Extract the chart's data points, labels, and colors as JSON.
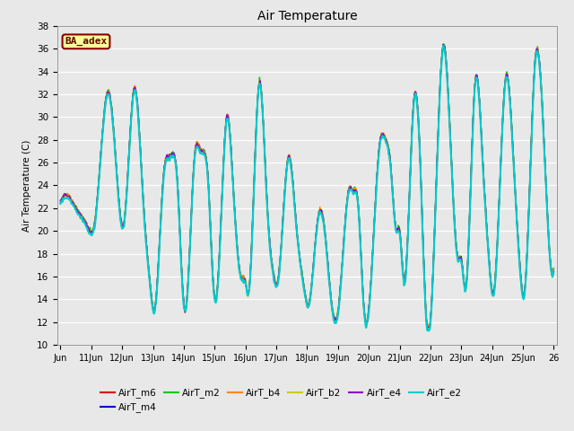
{
  "title": "Air Temperature",
  "ylabel": "Air Temperature (C)",
  "bg_color": "#e8e8e8",
  "ylim": [
    10,
    38
  ],
  "yticks": [
    10,
    12,
    14,
    16,
    18,
    20,
    22,
    24,
    26,
    28,
    30,
    32,
    34,
    36,
    38
  ],
  "series_order": [
    "AirT_m6",
    "AirT_m4",
    "AirT_m2",
    "AirT_b4",
    "AirT_b2",
    "AirT_e4",
    "AirT_e2"
  ],
  "series_colors": {
    "AirT_m6": "#dd0000",
    "AirT_m4": "#0000cc",
    "AirT_m2": "#00cc00",
    "AirT_b4": "#ff8800",
    "AirT_b2": "#cccc00",
    "AirT_e4": "#8800cc",
    "AirT_e2": "#00cccc"
  },
  "series_lw": {
    "AirT_m6": 1.0,
    "AirT_m4": 1.0,
    "AirT_m2": 1.0,
    "AirT_b4": 1.0,
    "AirT_b2": 1.0,
    "AirT_e4": 1.0,
    "AirT_e2": 1.5
  },
  "legend_box": {
    "text": "BA_adex",
    "facecolor": "#ffff99",
    "edgecolor": "#880000",
    "textcolor": "#660000",
    "fontsize": 8
  },
  "xtick_labels": [
    "Jun",
    "11Jun",
    "12Jun",
    "13Jun",
    "14Jun",
    "15Jun",
    "16Jun",
    "17Jun",
    "18Jun",
    "19Jun",
    "20Jun",
    "21Jun",
    "22Jun",
    "23Jun",
    "24Jun",
    "25Jun",
    "26"
  ],
  "figsize": [
    6.4,
    4.8
  ],
  "dpi": 100
}
